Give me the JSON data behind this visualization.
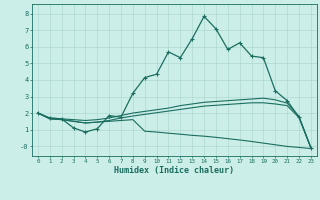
{
  "title": "",
  "xlabel": "Humidex (Indice chaleur)",
  "bg_color": "#cceee8",
  "line_color": "#1a6e60",
  "grid_color": "#b0d8d2",
  "x_values": [
    0,
    1,
    2,
    3,
    4,
    5,
    6,
    7,
    8,
    9,
    10,
    11,
    12,
    13,
    14,
    15,
    16,
    17,
    18,
    19,
    20,
    21,
    22,
    23
  ],
  "line1": [
    2.0,
    1.7,
    1.65,
    1.1,
    0.85,
    1.05,
    1.85,
    1.75,
    3.2,
    4.15,
    4.35,
    5.7,
    5.35,
    6.5,
    7.85,
    7.1,
    5.85,
    6.25,
    5.45,
    5.35,
    3.35,
    2.75,
    1.75,
    -0.1
  ],
  "line2": [
    2.0,
    1.7,
    1.65,
    1.6,
    1.55,
    1.6,
    1.7,
    1.85,
    2.0,
    2.1,
    2.2,
    2.3,
    2.45,
    2.55,
    2.65,
    2.7,
    2.75,
    2.8,
    2.85,
    2.9,
    2.8,
    2.6,
    1.8,
    -0.1
  ],
  "line3": [
    2.0,
    1.65,
    1.6,
    1.5,
    1.4,
    1.45,
    1.55,
    1.7,
    1.82,
    1.92,
    2.02,
    2.12,
    2.22,
    2.32,
    2.42,
    2.47,
    2.52,
    2.57,
    2.62,
    2.62,
    2.55,
    2.45,
    1.72,
    -0.1
  ],
  "line4": [
    2.0,
    1.65,
    1.6,
    1.5,
    1.4,
    1.45,
    1.5,
    1.55,
    1.6,
    0.9,
    0.85,
    0.78,
    0.72,
    0.65,
    0.6,
    0.53,
    0.45,
    0.37,
    0.28,
    0.18,
    0.08,
    -0.02,
    -0.08,
    -0.15
  ],
  "xlim": [
    -0.5,
    23.5
  ],
  "ylim": [
    -0.6,
    8.6
  ],
  "yticks": [
    0,
    1,
    2,
    3,
    4,
    5,
    6,
    7,
    8
  ],
  "xticks": [
    0,
    1,
    2,
    3,
    4,
    5,
    6,
    7,
    8,
    9,
    10,
    11,
    12,
    13,
    14,
    15,
    16,
    17,
    18,
    19,
    20,
    21,
    22,
    23
  ]
}
